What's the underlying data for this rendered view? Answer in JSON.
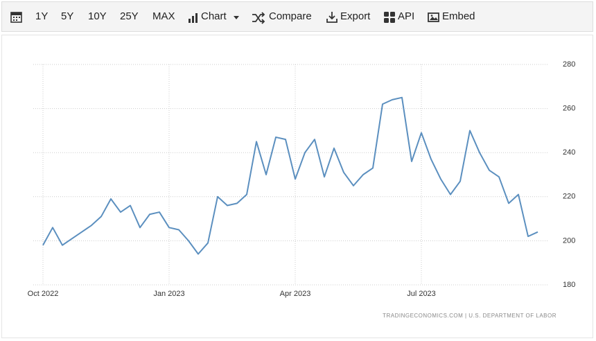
{
  "toolbar": [
    "1Y",
    "5Y",
    "10Y",
    "25Y",
    "MAX",
    "Chart",
    "Compare",
    "Export",
    "API",
    "Embed"
  ],
  "chart_data": {
    "type": "line",
    "categories": [
      "Oct 2022",
      null,
      null,
      null,
      null,
      null,
      null,
      null,
      null,
      null,
      null,
      null,
      null,
      "Jan 2023",
      null,
      null,
      null,
      null,
      null,
      null,
      null,
      null,
      null,
      null,
      null,
      null,
      "Apr 2023",
      null,
      null,
      null,
      null,
      null,
      null,
      null,
      null,
      null,
      null,
      null,
      null,
      "Jul 2023",
      null,
      null,
      null,
      null,
      null,
      null,
      null,
      null,
      null,
      null,
      null,
      null
    ],
    "values": [
      198,
      206,
      198,
      201,
      204,
      207,
      211,
      219,
      213,
      216,
      206,
      212,
      213,
      206,
      205,
      200,
      194,
      199,
      220,
      216,
      217,
      221,
      245,
      230,
      247,
      246,
      228,
      240,
      246,
      229,
      242,
      231,
      225,
      230,
      233,
      262,
      264,
      265,
      236,
      249,
      237,
      228,
      221,
      227,
      250,
      240,
      232,
      229,
      217,
      221,
      202,
      204
    ],
    "color": "#5b8fbf",
    "ylim": [
      180,
      280
    ],
    "yticks": [
      180,
      200,
      220,
      240,
      260,
      280
    ],
    "grid": true,
    "source": "TRADINGECONOMICS.COM | U.S. DEPARTMENT OF LABOR"
  }
}
